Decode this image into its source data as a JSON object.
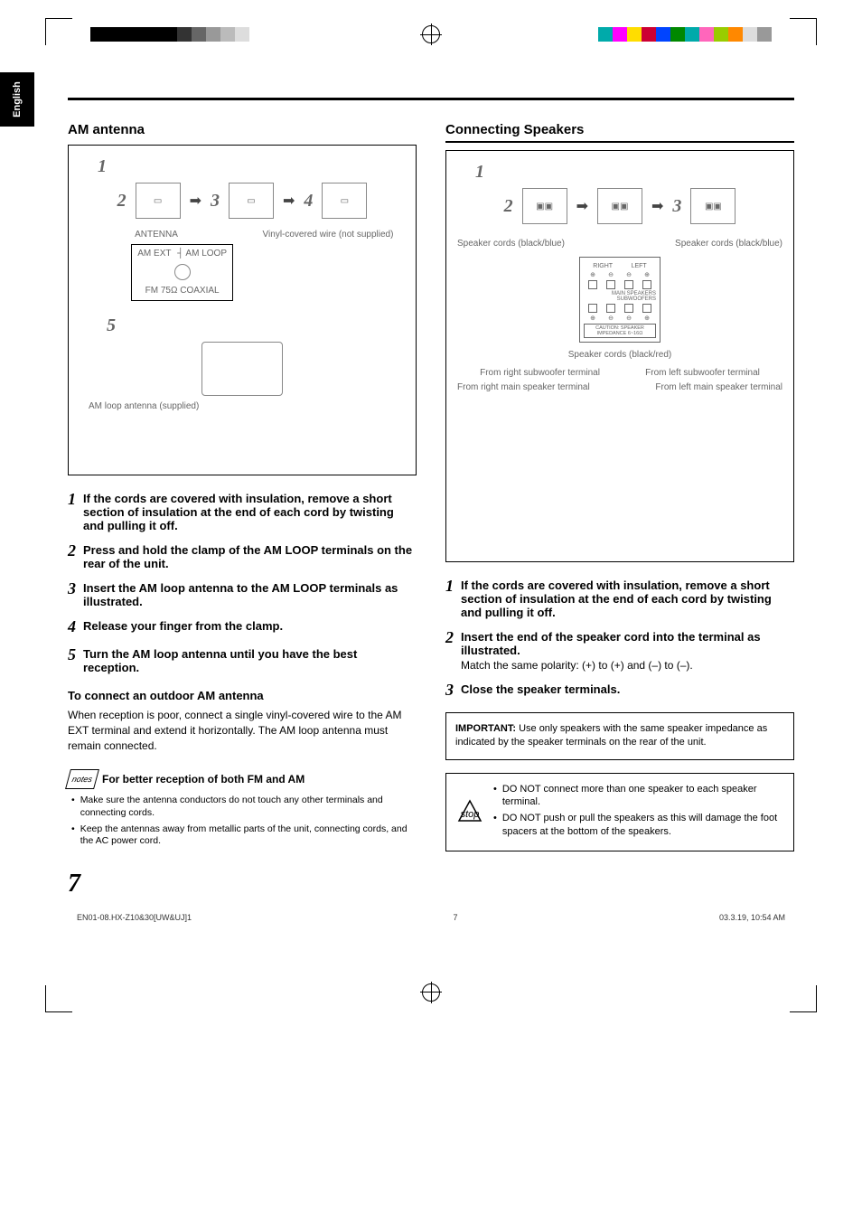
{
  "page": {
    "language": "English",
    "pageNumber": "7",
    "footer_left": "EN01-08.HX-Z10&30[UW&UJ]1",
    "footer_center": "7",
    "footer_right": "03.3.19, 10:54 AM",
    "color_bars_left": [
      "#000000",
      "#000000",
      "#000000",
      "#000000",
      "#000000",
      "#000000",
      "#333333",
      "#666666",
      "#999999",
      "#bbbbbb",
      "#dddddd",
      "#ffffff"
    ],
    "color_bars_right": [
      "#00aaaa",
      "#ff00ff",
      "#ffdd00",
      "#cc0033",
      "#0044ff",
      "#008800",
      "#00aaaa",
      "#ff66bb",
      "#99cc00",
      "#ff8800",
      "#dddddd",
      "#999999"
    ]
  },
  "left": {
    "heading": "AM antenna",
    "diagram": {
      "steps": [
        "1",
        "2",
        "3",
        "4",
        "5"
      ],
      "label_antenna": "ANTENNA",
      "label_amext": "AM EXT",
      "label_amloop_small": "AM LOOP",
      "label_fm": "FM 75Ω COAXIAL",
      "label_wire": "Vinyl-covered wire (not supplied)",
      "label_amloop": "AM loop antenna (supplied)"
    },
    "steps": [
      "If the cords are covered with insulation, remove a short section of insulation at the end of each cord by twisting and pulling it off.",
      "Press and hold the clamp of the AM LOOP terminals on the rear of the unit.",
      "Insert the AM loop antenna to the AM LOOP terminals as illustrated.",
      "Release your finger from the clamp.",
      "Turn the AM loop antenna until you have the best reception."
    ],
    "subhead": "To connect an outdoor AM antenna",
    "subbody": "When reception is poor, connect a single vinyl-covered wire to the AM EXT terminal and extend it horizontally. The AM loop antenna must remain connected.",
    "notes_title": "For better reception of both FM and AM",
    "notes_icon": "notes",
    "notes": [
      "Make sure the antenna conductors do not touch any other terminals and connecting cords.",
      "Keep the antennas away from metallic parts of the unit, connecting cords, and the AC power cord."
    ]
  },
  "right": {
    "heading": "Connecting Speakers",
    "diagram": {
      "steps": [
        "1",
        "2",
        "3"
      ],
      "label_cords_bb": "Speaker cords (black/blue)",
      "label_cords_br": "Speaker cords (black/red)",
      "label_right_main": "RIGHT",
      "label_left_main": "LEFT",
      "label_main": "MAIN SPEAKERS",
      "label_sub": "SUBWOOFERS",
      "label_from_right_sub": "From right subwoofer terminal",
      "label_from_left_sub": "From left subwoofer terminal",
      "label_from_right_main": "From right main speaker terminal",
      "label_from_left_main": "From left main speaker terminal",
      "label_caution": "CAUTION: SPEAKER IMPEDANCE  6~16Ω"
    },
    "steps": [
      {
        "t": "If the cords are covered with insulation, remove a short section of insulation at the end of each cord by twisting and pulling it off.",
        "sub": ""
      },
      {
        "t": "Insert the end of the speaker cord into the terminal as illustrated.",
        "sub": "Match the same polarity: (+) to (+) and (–) to (–)."
      },
      {
        "t": "Close the speaker terminals.",
        "sub": ""
      }
    ],
    "important_label": "IMPORTANT:",
    "important_body": " Use only speakers with the same speaker impedance as indicated by the speaker terminals on the rear of the unit.",
    "caution_icon": "⚠",
    "caution": [
      "DO NOT connect more than one speaker to each speaker terminal.",
      "DO NOT push or pull the speakers as this will damage the foot spacers at the bottom of the speakers."
    ]
  }
}
